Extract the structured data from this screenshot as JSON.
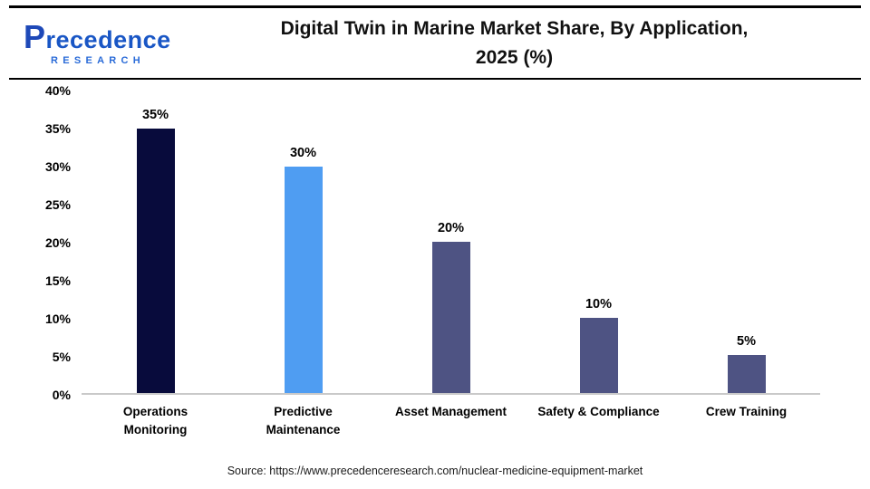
{
  "header": {
    "logo_name": "Precedence",
    "logo_subtitle": "RESEARCH",
    "title": "Digital Twin in Marine Market Share, By Application,\n2025 (%)"
  },
  "chart_data": {
    "type": "bar",
    "title": "Digital Twin in Marine Market Share, By Application, 2025 (%)",
    "categories": [
      "Operations Monitoring",
      "Predictive Maintenance",
      "Asset Management",
      "Safety & Compliance",
      "Crew Training"
    ],
    "category_labels": [
      "Operations\nMonitoring",
      "Predictive\nMaintenance",
      "Asset Management",
      "Safety & Compliance",
      "Crew Training"
    ],
    "values": [
      35,
      30,
      20,
      10,
      5
    ],
    "value_labels": [
      "35%",
      "30%",
      "20%",
      "10%",
      "5%"
    ],
    "bar_colors": [
      "#080B3C",
      "#4F9DF2",
      "#4E5383",
      "#4E5383",
      "#4E5383"
    ],
    "ylim": [
      0,
      40
    ],
    "yticks": [
      {
        "value": 40,
        "label": "40%"
      },
      {
        "value": 35,
        "label": "35%"
      },
      {
        "value": 30,
        "label": "30%"
      },
      {
        "value": 25,
        "label": "25%"
      },
      {
        "value": 20,
        "label": "20%"
      },
      {
        "value": 15,
        "label": "15%"
      },
      {
        "value": 10,
        "label": "10%"
      },
      {
        "value": 5,
        "label": "5%"
      },
      {
        "value": 0,
        "label": "0%"
      }
    ],
    "xlabel": "",
    "ylabel": "",
    "grid": false,
    "legend": "none",
    "axis_color": "#c9c9c9"
  },
  "footer": {
    "source": "Source: https://www.precedenceresearch.com/nuclear-medicine-equipment-market"
  }
}
